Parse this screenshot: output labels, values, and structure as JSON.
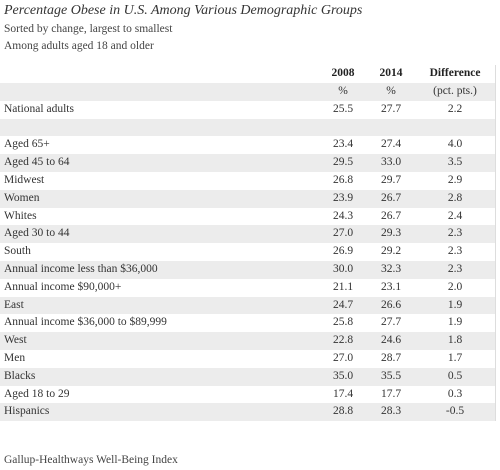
{
  "header": {
    "title": "Percentage Obese in U.S. Among Various Demographic Groups",
    "subtitles": [
      "Sorted by change, largest to smallest",
      "Among adults aged 18 and older"
    ]
  },
  "table": {
    "columns": [
      "2008",
      "2014",
      "Difference"
    ],
    "units": [
      "%",
      "%",
      "(pct. pts.)"
    ],
    "national": [
      "National adults",
      "25.5",
      "27.7",
      "2.2"
    ],
    "rows": [
      [
        "Aged 65+",
        "23.4",
        "27.4",
        "4.0"
      ],
      [
        "Aged 45 to 64",
        "29.5",
        "33.0",
        "3.5"
      ],
      [
        "Midwest",
        "26.8",
        "29.7",
        "2.9"
      ],
      [
        "Women",
        "23.9",
        "26.7",
        "2.8"
      ],
      [
        "Whites",
        "24.3",
        "26.7",
        "2.4"
      ],
      [
        "Aged 30 to 44",
        "27.0",
        "29.3",
        "2.3"
      ],
      [
        "South",
        "26.9",
        "29.2",
        "2.3"
      ],
      [
        "Annual income less than $36,000",
        "30.0",
        "32.3",
        "2.3"
      ],
      [
        "Annual income $90,000+",
        "21.1",
        "23.1",
        "2.0"
      ],
      [
        "East",
        "24.7",
        "26.6",
        "1.9"
      ],
      [
        "Annual income $36,000 to $89,999",
        "25.8",
        "27.7",
        "1.9"
      ],
      [
        "West",
        "22.8",
        "24.6",
        "1.8"
      ],
      [
        "Men",
        "27.0",
        "28.7",
        "1.7"
      ],
      [
        "Blacks",
        "35.0",
        "35.5",
        "0.5"
      ],
      [
        "Aged 18 to 29",
        "17.4",
        "17.7",
        "0.3"
      ],
      [
        "Hispanics",
        "28.8",
        "28.3",
        "-0.5"
      ]
    ]
  },
  "footer": {
    "source": "Gallup-Healthways Well-Being Index"
  }
}
